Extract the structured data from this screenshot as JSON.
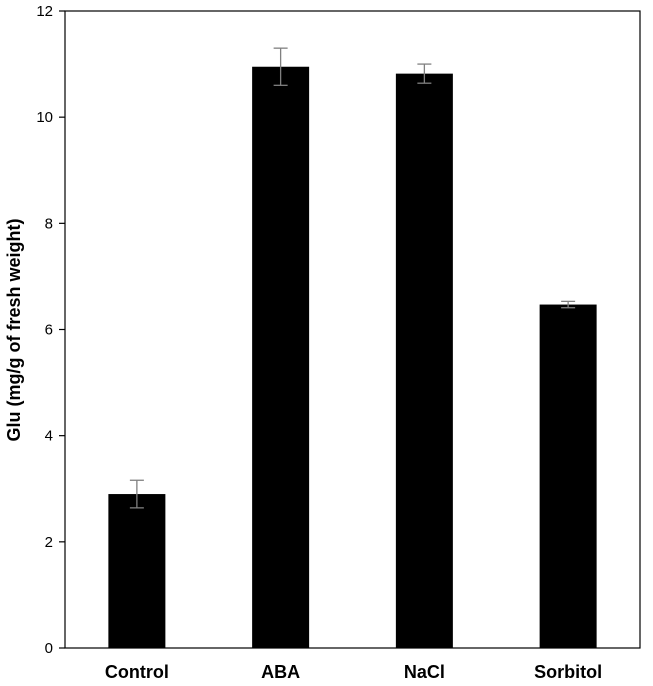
{
  "chart_data": {
    "type": "bar",
    "title": "",
    "xlabel": "",
    "ylabel": "Glu (mg/g of fresh weight)",
    "categories": [
      "Control",
      "ABA",
      "NaCl",
      "Sorbitol"
    ],
    "values": [
      2.9,
      10.95,
      10.82,
      6.47
    ],
    "errors": [
      0.26,
      0.35,
      0.18,
      0.06
    ],
    "ylim": [
      0,
      12
    ],
    "yticks": [
      0,
      2,
      4,
      6,
      8,
      10,
      12
    ],
    "grid": false,
    "legend": false,
    "colors": {
      "bar": "#000000",
      "error_bar": "#808080",
      "axis": "#000000",
      "background": "#ffffff"
    }
  }
}
